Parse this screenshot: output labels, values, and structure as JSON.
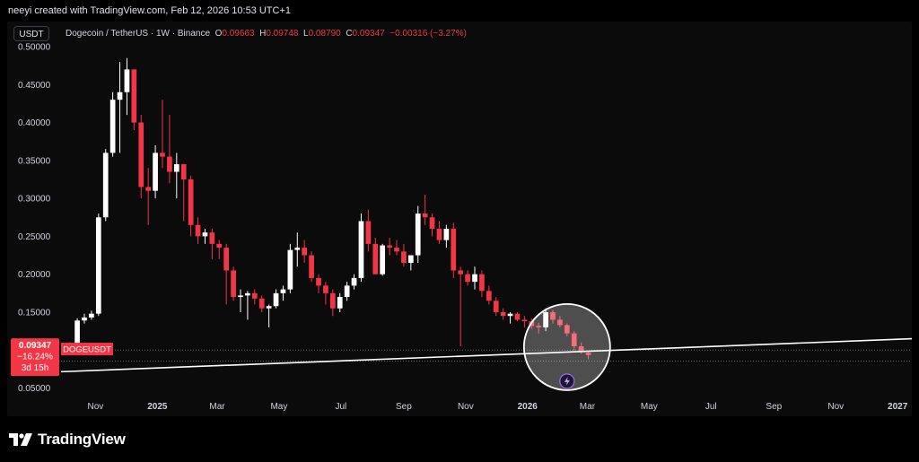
{
  "header": {
    "attribution": "neeyi created with TradingView.com, Feb 12, 2026 10:53 UTC+1"
  },
  "toolbar": {
    "currency": "USDT"
  },
  "legend": {
    "symbol_desc": "Dogecoin / TetherUS · 1W · Binance",
    "open_label": "O",
    "open_value": "0.09663",
    "high_label": "H",
    "high_value": "0.09748",
    "low_label": "L",
    "low_value": "0.08790",
    "close_label": "C",
    "close_value": "0.09347",
    "change": "−0.00316 (−3.27%)"
  },
  "price_tag": {
    "price": "0.09347",
    "change_pct": "−16.24%",
    "countdown": "3d 15h",
    "symbol": "DOGEUSDT"
  },
  "footer": {
    "brand": "TradingView"
  },
  "colors": {
    "up": "#ffffff",
    "down": "#f23645",
    "background": "#0b0b0c",
    "axis_text": "#d1d4dc",
    "trendline": "#ffffff"
  },
  "chart_data": {
    "type": "candlestick",
    "interval": "1W",
    "y_axis": {
      "range": [
        0.04,
        0.5
      ],
      "ticks": [
        0.05,
        0.1,
        0.15,
        0.2,
        0.25,
        0.3,
        0.35,
        0.4,
        0.45,
        0.5
      ],
      "tick_labels": [
        "0.05000",
        "0.10000",
        "0.15000",
        "0.20000",
        "0.25000",
        "0.30000",
        "0.35000",
        "0.40000",
        "0.45000",
        "0.50000"
      ],
      "position": "left"
    },
    "x_axis": {
      "range": [
        "2024-09-28",
        "2027-01-15"
      ],
      "ticks": [
        "2024-11-01",
        "2025-01-01",
        "2025-03-01",
        "2025-05-01",
        "2025-07-01",
        "2025-09-01",
        "2025-11-01",
        "2026-01-01",
        "2026-03-01",
        "2026-05-01",
        "2026-07-01",
        "2026-09-01",
        "2026-11-01",
        "2027-01-01"
      ],
      "tick_labels": [
        "Nov",
        "2025",
        "Mar",
        "May",
        "Jul",
        "Sep",
        "Nov",
        "2026",
        "Mar",
        "May",
        "Jul",
        "Sep",
        "Nov",
        "2027"
      ]
    },
    "grid": false,
    "first_week": "2024-10-07",
    "candles": [
      [
        0.108,
        0.11,
        0.104,
        0.109
      ],
      [
        0.109,
        0.142,
        0.108,
        0.139
      ],
      [
        0.139,
        0.148,
        0.135,
        0.143
      ],
      [
        0.143,
        0.152,
        0.14,
        0.148
      ],
      [
        0.148,
        0.28,
        0.145,
        0.275
      ],
      [
        0.275,
        0.365,
        0.27,
        0.36
      ],
      [
        0.36,
        0.44,
        0.355,
        0.43
      ],
      [
        0.43,
        0.48,
        0.36,
        0.44
      ],
      [
        0.44,
        0.485,
        0.41,
        0.47
      ],
      [
        0.47,
        0.47,
        0.39,
        0.4
      ],
      [
        0.4,
        0.41,
        0.3,
        0.315
      ],
      [
        0.315,
        0.34,
        0.265,
        0.31
      ],
      [
        0.31,
        0.37,
        0.3,
        0.36
      ],
      [
        0.36,
        0.43,
        0.34,
        0.355
      ],
      [
        0.355,
        0.41,
        0.32,
        0.335
      ],
      [
        0.335,
        0.36,
        0.3,
        0.345
      ],
      [
        0.345,
        0.345,
        0.27,
        0.325
      ],
      [
        0.325,
        0.33,
        0.25,
        0.265
      ],
      [
        0.265,
        0.275,
        0.24,
        0.25
      ],
      [
        0.25,
        0.26,
        0.24,
        0.255
      ],
      [
        0.255,
        0.26,
        0.22,
        0.24
      ],
      [
        0.24,
        0.245,
        0.22,
        0.235
      ],
      [
        0.235,
        0.24,
        0.16,
        0.205
      ],
      [
        0.205,
        0.21,
        0.165,
        0.17
      ],
      [
        0.17,
        0.18,
        0.15,
        0.172
      ],
      [
        0.172,
        0.178,
        0.14,
        0.175
      ],
      [
        0.175,
        0.18,
        0.16,
        0.168
      ],
      [
        0.168,
        0.172,
        0.15,
        0.155
      ],
      [
        0.155,
        0.16,
        0.13,
        0.158
      ],
      [
        0.158,
        0.18,
        0.155,
        0.175
      ],
      [
        0.175,
        0.185,
        0.165,
        0.18
      ],
      [
        0.18,
        0.24,
        0.175,
        0.232
      ],
      [
        0.232,
        0.255,
        0.21,
        0.235
      ],
      [
        0.235,
        0.245,
        0.215,
        0.225
      ],
      [
        0.225,
        0.23,
        0.19,
        0.195
      ],
      [
        0.195,
        0.2,
        0.175,
        0.185
      ],
      [
        0.185,
        0.19,
        0.16,
        0.175
      ],
      [
        0.175,
        0.18,
        0.145,
        0.155
      ],
      [
        0.155,
        0.175,
        0.15,
        0.17
      ],
      [
        0.17,
        0.19,
        0.165,
        0.185
      ],
      [
        0.185,
        0.2,
        0.18,
        0.195
      ],
      [
        0.195,
        0.28,
        0.19,
        0.27
      ],
      [
        0.27,
        0.285,
        0.23,
        0.24
      ],
      [
        0.24,
        0.248,
        0.2,
        0.2
      ],
      [
        0.2,
        0.24,
        0.198,
        0.238
      ],
      [
        0.238,
        0.248,
        0.225,
        0.235
      ],
      [
        0.235,
        0.245,
        0.225,
        0.23
      ],
      [
        0.23,
        0.24,
        0.21,
        0.215
      ],
      [
        0.215,
        0.225,
        0.205,
        0.225
      ],
      [
        0.225,
        0.29,
        0.215,
        0.28
      ],
      [
        0.28,
        0.305,
        0.265,
        0.275
      ],
      [
        0.275,
        0.28,
        0.25,
        0.26
      ],
      [
        0.26,
        0.27,
        0.24,
        0.245
      ],
      [
        0.245,
        0.265,
        0.235,
        0.26
      ],
      [
        0.26,
        0.268,
        0.195,
        0.205
      ],
      [
        0.205,
        0.21,
        0.105,
        0.2
      ],
      [
        0.2,
        0.205,
        0.185,
        0.19
      ],
      [
        0.19,
        0.21,
        0.18,
        0.2
      ],
      [
        0.2,
        0.205,
        0.17,
        0.178
      ],
      [
        0.178,
        0.185,
        0.16,
        0.165
      ],
      [
        0.165,
        0.17,
        0.145,
        0.15
      ],
      [
        0.15,
        0.155,
        0.14,
        0.145
      ],
      [
        0.145,
        0.15,
        0.135,
        0.148
      ],
      [
        0.148,
        0.15,
        0.138,
        0.14
      ],
      [
        0.14,
        0.145,
        0.13,
        0.138
      ],
      [
        0.138,
        0.142,
        0.128,
        0.132
      ],
      [
        0.132,
        0.136,
        0.122,
        0.13
      ],
      [
        0.13,
        0.155,
        0.125,
        0.15
      ],
      [
        0.15,
        0.153,
        0.135,
        0.14
      ],
      [
        0.14,
        0.145,
        0.13,
        0.133
      ],
      [
        0.133,
        0.135,
        0.118,
        0.122
      ],
      [
        0.122,
        0.125,
        0.1,
        0.105
      ],
      [
        0.105,
        0.11,
        0.095,
        0.097
      ],
      [
        0.09663,
        0.09748,
        0.0879,
        0.09347
      ]
    ],
    "trendline": {
      "from": [
        "2024-09-28",
        0.0715
      ],
      "to": [
        "2027-01-15",
        0.115
      ],
      "color": "#ffffff"
    },
    "levels": [
      0.1,
      0.0855
    ],
    "highlight_circle": {
      "center": [
        "2026-02-09",
        0.104
      ],
      "color": "#ffffff"
    }
  }
}
